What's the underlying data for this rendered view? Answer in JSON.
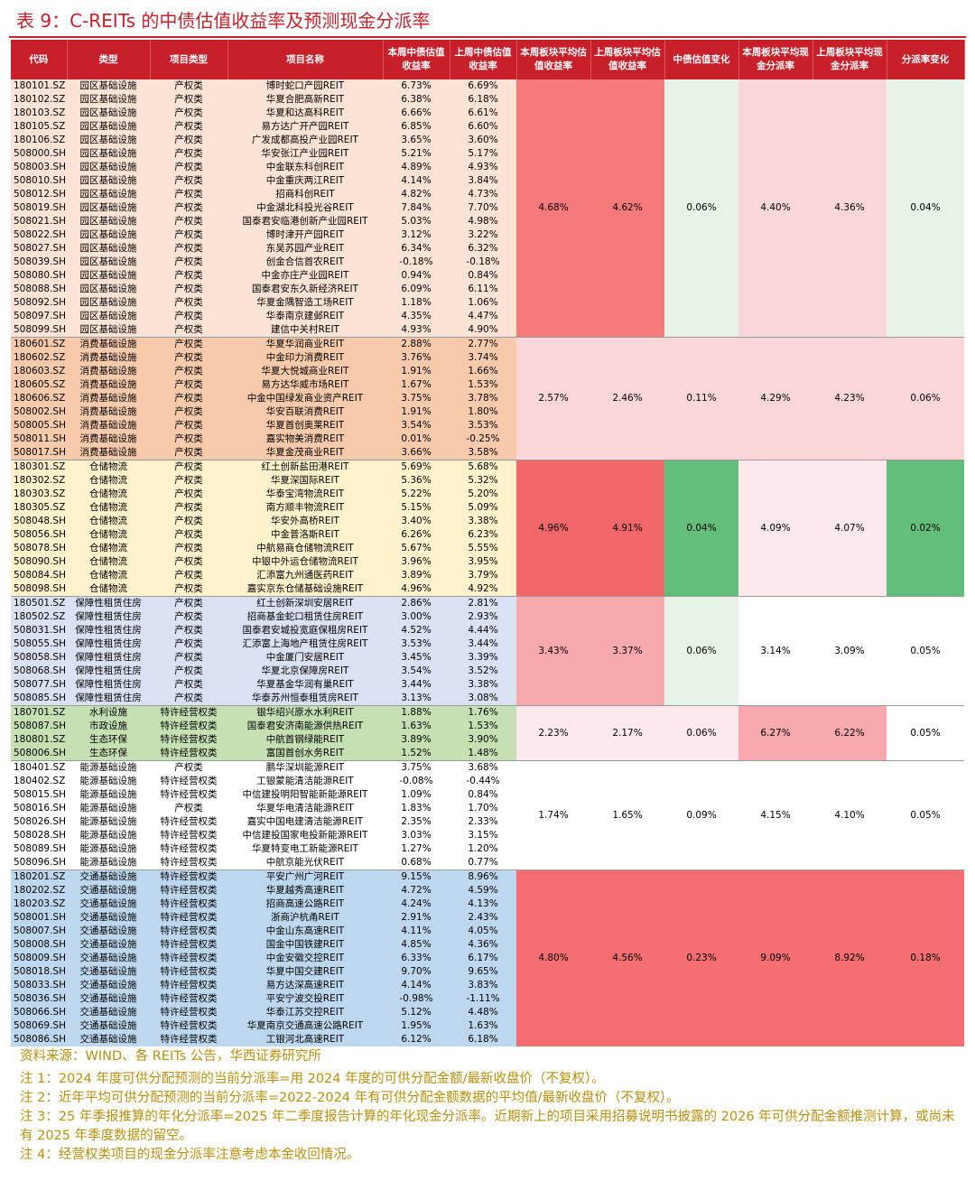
{
  "title": "表 9：C-REITs 的中债估值收益率及预测现金分派率",
  "headers": {
    "code": "代码",
    "type": "类型",
    "ptype": "项目类型",
    "name": "项目名称",
    "yield_this": "本周中债估值收益率",
    "yield_last": "上周中债估值收益率",
    "sect_this": "本周板块平均估值收益率",
    "sect_last": "上周板块平均估值收益率",
    "change": "中债估值变化",
    "dist_this": "本周板块平均现金分派率",
    "dist_last": "上周板块平均现金分派率",
    "dist_change": "分派率变化"
  },
  "sections": [
    {
      "row_color": "#fce3d6",
      "cells": [
        "4.68%",
        "4.62%",
        "0.06%",
        "4.40%",
        "4.36%",
        "0.04%"
      ],
      "cell_colors": [
        "#f67a7c",
        "#f67a7c",
        "#e6f3e6",
        "#fbd6d9",
        "#fbd6d9",
        "#e6f3e6"
      ],
      "rows": [
        [
          "180101.SZ",
          "园区基础设施",
          "产权类",
          "博时蛇口产园REIT",
          "6.73%",
          "6.69%"
        ],
        [
          "180102.SZ",
          "园区基础设施",
          "产权类",
          "华夏合肥高新REIT",
          "6.38%",
          "6.18%"
        ],
        [
          "180103.SZ",
          "园区基础设施",
          "产权类",
          "华夏和达高科REIT",
          "6.66%",
          "6.61%"
        ],
        [
          "180105.SZ",
          "园区基础设施",
          "产权类",
          "易方达广开产园REIT",
          "6.85%",
          "6.60%"
        ],
        [
          "180106.SZ",
          "园区基础设施",
          "产权类",
          "广发成都高投产业园REIT",
          "3.65%",
          "3.60%"
        ],
        [
          "508000.SH",
          "园区基础设施",
          "产权类",
          "华安张江产业园REIT",
          "5.21%",
          "5.17%"
        ],
        [
          "508003.SH",
          "园区基础设施",
          "产权类",
          "中金联东科创REIT",
          "4.89%",
          "4.93%"
        ],
        [
          "508010.SH",
          "园区基础设施",
          "产权类",
          "中金重庆两江REIT",
          "4.14%",
          "3.84%"
        ],
        [
          "508012.SH",
          "园区基础设施",
          "产权类",
          "招商科创REIT",
          "4.82%",
          "4.73%"
        ],
        [
          "508019.SH",
          "园区基础设施",
          "产权类",
          "中金湖北科投光谷REIT",
          "7.84%",
          "7.70%"
        ],
        [
          "508021.SH",
          "园区基础设施",
          "产权类",
          "国泰君安临港创新产业园REIT",
          "5.03%",
          "4.98%"
        ],
        [
          "508022.SH",
          "园区基础设施",
          "产权类",
          "博时津开产园REIT",
          "3.12%",
          "3.22%"
        ],
        [
          "508027.SH",
          "园区基础设施",
          "产权类",
          "东吴苏园产业REIT",
          "6.34%",
          "6.32%"
        ],
        [
          "508039.SH",
          "园区基础设施",
          "产权类",
          "创金合信首农REIT",
          "-0.18%",
          "-0.18%"
        ],
        [
          "508080.SH",
          "园区基础设施",
          "产权类",
          "中金亦庄产业园REIT",
          "0.94%",
          "0.84%"
        ],
        [
          "508088.SH",
          "园区基础设施",
          "产权类",
          "国泰君安东久新经济REIT",
          "6.09%",
          "6.11%"
        ],
        [
          "508092.SH",
          "园区基础设施",
          "产权类",
          "华夏金隅智造工场REIT",
          "1.18%",
          "1.06%"
        ],
        [
          "508097.SH",
          "园区基础设施",
          "产权类",
          "华泰南京建邺REIT",
          "4.35%",
          "4.47%"
        ],
        [
          "508099.SH",
          "园区基础设施",
          "产权类",
          "建信中关村REIT",
          "4.93%",
          "4.90%"
        ]
      ]
    },
    {
      "row_color": "#f7caac",
      "cells": [
        "2.57%",
        "2.46%",
        "0.11%",
        "4.29%",
        "4.23%",
        "0.06%"
      ],
      "cell_colors": [
        "#fbd6d9",
        "#fbd6d9",
        "#fbd6d9",
        "#fbd6d9",
        "#fbd6d9",
        "#fbd6d9"
      ],
      "rows": [
        [
          "180601.SZ",
          "消费基础设施",
          "产权类",
          "华夏华润商业REIT",
          "2.88%",
          "2.77%"
        ],
        [
          "180602.SZ",
          "消费基础设施",
          "产权类",
          "中金印力消费REIT",
          "3.76%",
          "3.74%"
        ],
        [
          "180603.SZ",
          "消费基础设施",
          "产权类",
          "华夏大悦城商业REIT",
          "1.91%",
          "1.66%"
        ],
        [
          "180605.SZ",
          "消费基础设施",
          "产权类",
          "易方达华威市场REIT",
          "1.67%",
          "1.53%"
        ],
        [
          "180606.SZ",
          "消费基础设施",
          "产权类",
          "中金中国绿发商业资产REIT",
          "3.75%",
          "3.78%"
        ],
        [
          "508002.SH",
          "消费基础设施",
          "产权类",
          "华安百联消费REIT",
          "1.91%",
          "1.80%"
        ],
        [
          "508005.SH",
          "消费基础设施",
          "产权类",
          "华夏首创奥莱REIT",
          "3.54%",
          "3.53%"
        ],
        [
          "508011.SH",
          "消费基础设施",
          "产权类",
          "嘉实物美消费REIT",
          "0.01%",
          "-0.25%"
        ],
        [
          "508017.SH",
          "消费基础设施",
          "产权类",
          "华夏金茂商业REIT",
          "3.66%",
          "3.58%"
        ]
      ]
    },
    {
      "row_color": "#fff2cc",
      "cells": [
        "4.96%",
        "4.91%",
        "0.04%",
        "4.09%",
        "4.07%",
        "0.02%"
      ],
      "cell_colors": [
        "#f2676a",
        "#f2676a",
        "#63be7b",
        "#fde9eb",
        "#fde9eb",
        "#63be7b"
      ],
      "rows": [
        [
          "180301.SZ",
          "仓储物流",
          "产权类",
          "红土创新盐田港REIT",
          "5.69%",
          "5.68%"
        ],
        [
          "180302.SZ",
          "仓储物流",
          "产权类",
          "华夏深国际REIT",
          "5.36%",
          "5.32%"
        ],
        [
          "180303.SZ",
          "仓储物流",
          "产权类",
          "华泰宝湾物流REIT",
          "5.22%",
          "5.20%"
        ],
        [
          "180305.SZ",
          "仓储物流",
          "产权类",
          "南方顺丰物流REIT",
          "5.15%",
          "5.09%"
        ],
        [
          "508048.SH",
          "仓储物流",
          "产权类",
          "华安外高桥REIT",
          "3.40%",
          "3.38%"
        ],
        [
          "508056.SH",
          "仓储物流",
          "产权类",
          "中金普洛斯REIT",
          "6.26%",
          "6.23%"
        ],
        [
          "508078.SH",
          "仓储物流",
          "产权类",
          "中航易商仓储物流REIT",
          "5.67%",
          "5.55%"
        ],
        [
          "508090.SH",
          "仓储物流",
          "产权类",
          "中银中外运仓储物流REIT",
          "3.96%",
          "3.95%"
        ],
        [
          "508084.SH",
          "仓储物流",
          "产权类",
          "汇添富九州通医药REIT",
          "3.89%",
          "3.79%"
        ],
        [
          "508098.SH",
          "仓储物流",
          "产权类",
          "嘉实京东仓储基础设施REIT",
          "4.96%",
          "4.92%"
        ]
      ]
    },
    {
      "row_color": "#d9e1f2",
      "cells": [
        "3.43%",
        "3.37%",
        "0.06%",
        "3.14%",
        "3.09%",
        "0.05%"
      ],
      "cell_colors": [
        "#f8a9ad",
        "#f8a9ad",
        "#e6f3e6",
        "#ffffff",
        "#ffffff",
        "#ffffff"
      ],
      "rows": [
        [
          "180501.SZ",
          "保障性租赁住房",
          "产权类",
          "红土创新深圳安居REIT",
          "2.86%",
          "2.81%"
        ],
        [
          "180502.SZ",
          "保障性租赁住房",
          "产权类",
          "招商基金蛇口租赁住房REIT",
          "3.00%",
          "2.93%"
        ],
        [
          "508031.SH",
          "保障性租赁住房",
          "产权类",
          "国泰君安城投宽庭保租房REIT",
          "4.52%",
          "4.44%"
        ],
        [
          "508055.SH",
          "保障性租赁住房",
          "产权类",
          "汇添富上海地产租赁住房REIT",
          "3.53%",
          "3.44%"
        ],
        [
          "508058.SH",
          "保障性租赁住房",
          "产权类",
          "中金厦门安居REIT",
          "3.45%",
          "3.39%"
        ],
        [
          "508068.SH",
          "保障性租赁住房",
          "产权类",
          "华夏北京保障房REIT",
          "3.54%",
          "3.52%"
        ],
        [
          "508077.SH",
          "保障性租赁住房",
          "产权类",
          "华夏基金华润有巢REIT",
          "3.44%",
          "3.38%"
        ],
        [
          "508085.SH",
          "保障性租赁住房",
          "产权类",
          "华泰苏州恒泰租赁房REIT",
          "3.13%",
          "3.08%"
        ]
      ]
    },
    {
      "row_color": "#c6e0b4",
      "cells": [
        "2.23%",
        "2.17%",
        "0.06%",
        "6.27%",
        "6.22%",
        "0.05%"
      ],
      "cell_colors": [
        "#fde9eb",
        "#fde9eb",
        "#fde9eb",
        "#f8a9ad",
        "#f8a9ad",
        "#ffffff"
      ],
      "rows": [
        [
          "180701.SZ",
          "水利设施",
          "特许经营权类",
          "银华绍兴原水水利REIT",
          "1.88%",
          "1.76%"
        ],
        [
          "508087.SH",
          "市政设施",
          "特许经营权类",
          "国泰君安济南能源供热REIT",
          "1.63%",
          "1.53%"
        ],
        [
          "180801.SZ",
          "生态环保",
          "特许经营权类",
          "中航首钢绿能REIT",
          "3.89%",
          "3.90%"
        ],
        [
          "508006.SH",
          "生态环保",
          "特许经营权类",
          "富国首创水务REIT",
          "1.52%",
          "1.48%"
        ]
      ]
    },
    {
      "row_color": "#ffffff",
      "cells": [
        "1.74%",
        "1.65%",
        "0.09%",
        "4.15%",
        "4.10%",
        "0.05%"
      ],
      "cell_colors": [
        "#ffffff",
        "#ffffff",
        "#ffffff",
        "#ffffff",
        "#ffffff",
        "#ffffff"
      ],
      "rows": [
        [
          "180401.SZ",
          "能源基础设施",
          "产权类",
          "鹏华深圳能源REIT",
          "3.75%",
          "3.68%"
        ],
        [
          "180402.SZ",
          "能源基础设施",
          "特许经营权类",
          "工银蒙能清洁能源REIT",
          "-0.08%",
          "-0.44%"
        ],
        [
          "508015.SH",
          "能源基础设施",
          "特许经营权类",
          "中信建投明阳智能新能源REIT",
          "1.09%",
          "0.84%"
        ],
        [
          "508016.SH",
          "能源基础设施",
          "产权类",
          "华夏华电清洁能源REIT",
          "1.83%",
          "1.70%"
        ],
        [
          "508026.SH",
          "能源基础设施",
          "特许经营权类",
          "嘉实中国电建清洁能源REIT",
          "2.35%",
          "2.33%"
        ],
        [
          "508028.SH",
          "能源基础设施",
          "特许经营权类",
          "中信建投国家电投新能源REIT",
          "3.03%",
          "3.15%"
        ],
        [
          "508089.SH",
          "能源基础设施",
          "特许经营权类",
          "华夏特变电工新能源REIT",
          "1.27%",
          "1.20%"
        ],
        [
          "508096.SH",
          "能源基础设施",
          "特许经营权类",
          "中航京能光伏REIT",
          "0.68%",
          "0.77%"
        ]
      ]
    },
    {
      "row_color": "#bdd7ee",
      "cells": [
        "4.80%",
        "4.56%",
        "0.23%",
        "9.09%",
        "8.92%",
        "0.18%"
      ],
      "cell_colors": [
        "#f46e71",
        "#f46e71",
        "#f46e71",
        "#f46e71",
        "#f46e71",
        "#f46e71"
      ],
      "rows": [
        [
          "180201.SZ",
          "交通基础设施",
          "特许经营权类",
          "平安广州广河REIT",
          "9.15%",
          "8.96%"
        ],
        [
          "180202.SZ",
          "交通基础设施",
          "特许经营权类",
          "华夏越秀高速REIT",
          "4.72%",
          "4.59%"
        ],
        [
          "180203.SZ",
          "交通基础设施",
          "特许经营权类",
          "招商高速公路REIT",
          "4.24%",
          "4.13%"
        ],
        [
          "508001.SH",
          "交通基础设施",
          "特许经营权类",
          "浙商沪杭甬REIT",
          "2.91%",
          "2.43%"
        ],
        [
          "508007.SH",
          "交通基础设施",
          "特许经营权类",
          "中金山东高速REIT",
          "4.11%",
          "4.05%"
        ],
        [
          "508008.SH",
          "交通基础设施",
          "特许经营权类",
          "国金中国铁建REIT",
          "4.85%",
          "4.36%"
        ],
        [
          "508009.SH",
          "交通基础设施",
          "特许经营权类",
          "中金安徽交控REIT",
          "6.33%",
          "6.17%"
        ],
        [
          "508018.SH",
          "交通基础设施",
          "特许经营权类",
          "华夏中国交建REIT",
          "9.70%",
          "9.65%"
        ],
        [
          "508033.SH",
          "交通基础设施",
          "特许经营权类",
          "易方达深高速REIT",
          "4.14%",
          "3.83%"
        ],
        [
          "508036.SH",
          "交通基础设施",
          "特许经营权类",
          "平安宁波交投REIT",
          "-0.98%",
          "-1.11%"
        ],
        [
          "508066.SH",
          "交通基础设施",
          "特许经营权类",
          "华泰江苏交控REIT",
          "5.12%",
          "4.48%"
        ],
        [
          "508069.SH",
          "交通基础设施",
          "特许经营权类",
          "华夏南京交通高速公路REIT",
          "1.95%",
          "1.63%"
        ],
        [
          "508086.SH",
          "交通基础设施",
          "特许经营权类",
          "工银河北高速REIT",
          "6.12%",
          "6.18%"
        ]
      ]
    }
  ],
  "notes": {
    "source": "资料来源：WIND、各 REITs 公告，华西证券研究所",
    "n1": "注 1：2024 年度可供分配预测的当前分派率=用 2024 年度的可供分配金额/最新收盘价（不复权）。",
    "n2": "注 2：近年平均可供分配预测的当前分派率=2022-2024 年有可供分配金额数据的平均值/最新收盘价（不复权）。",
    "n3": "注 3：25 年季报推算的年化分派率=2025 年二季度报告计算的年化现金分派率。近期新上的项目采用招募说明书披露的 2026 年可供分配金额推测计算，或尚未有 2025 年季度数据的留空。",
    "n4": "注 4：经营权类项目的现金分派率注意考虑本金收回情况。"
  }
}
